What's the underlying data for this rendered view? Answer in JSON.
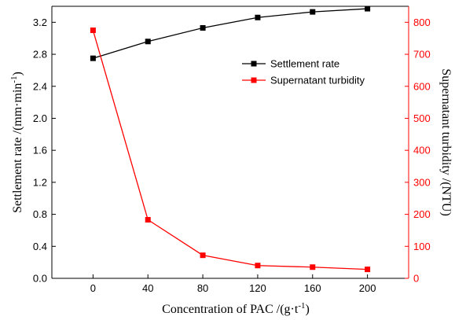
{
  "chart_data": {
    "type": "line",
    "x": [
      0,
      40,
      80,
      120,
      160,
      200
    ],
    "xlabel": "Concentration of PAC /(g·t",
    "xlabel_sup": "-1",
    "xlabel_tail": ")",
    "xlim": [
      -30,
      230
    ],
    "xticks": [
      0,
      40,
      80,
      120,
      160,
      200
    ],
    "ylabel_left": "Settlement rate /(mm·min",
    "ylabel_left_sup": "-1",
    "ylabel_left_tail": ")",
    "ylim_left": [
      0,
      3.4
    ],
    "yticks_left": [
      "0.0",
      "0.4",
      "0.8",
      "1.2",
      "1.6",
      "2.0",
      "2.4",
      "2.8",
      "3.2"
    ],
    "ylabel_right": "Supernatant turbidity /(NTU)",
    "ylim_right": [
      0,
      850
    ],
    "yticks_right": [
      "0",
      "100",
      "200",
      "300",
      "400",
      "500",
      "600",
      "700",
      "800"
    ],
    "legend_position": "upper-right",
    "series": [
      {
        "name": "Settlement rate",
        "axis": "left",
        "color": "#000000",
        "values": [
          2.75,
          2.96,
          3.13,
          3.26,
          3.33,
          3.37
        ]
      },
      {
        "name": "Supernatant turbidity",
        "axis": "right",
        "color": "#ff0000",
        "values": [
          775,
          183,
          72,
          40,
          35,
          28
        ]
      }
    ]
  }
}
